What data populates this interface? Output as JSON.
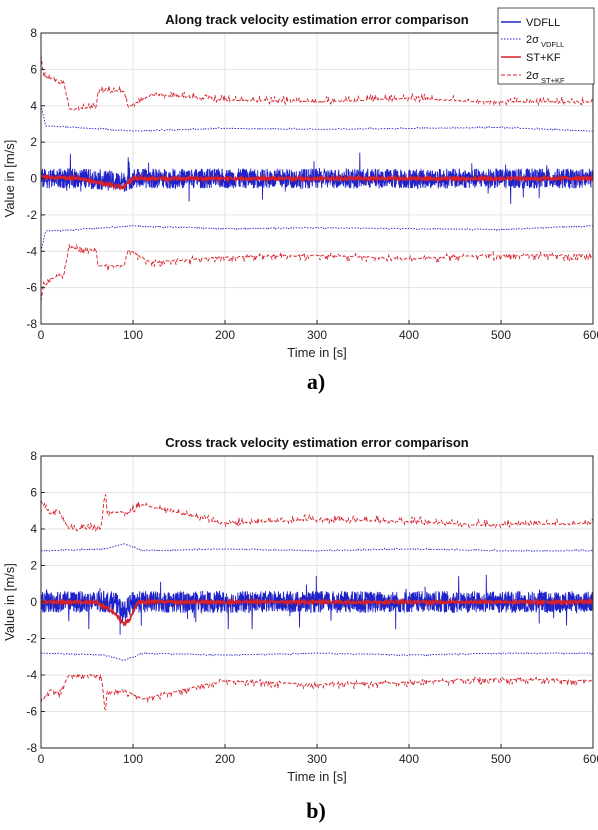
{
  "chart_data": [
    {
      "type": "line",
      "panel_label": "a)",
      "title": "Along track velocity estimation error comparison",
      "xlabel": "Time in [s]",
      "ylabel": "Value in [m/s]",
      "xlim": [
        0,
        600
      ],
      "ylim": [
        -8,
        8
      ],
      "xticks": [
        0,
        100,
        200,
        300,
        400,
        500,
        600
      ],
      "yticks": [
        -8,
        -6,
        -4,
        -2,
        0,
        2,
        4,
        6,
        8
      ],
      "grid": true,
      "legend_position": "top-right",
      "legend": [
        {
          "label": "VDFLL",
          "sub": "",
          "color": "#1f22c8",
          "dash": "solid"
        },
        {
          "label": "2σ",
          "sub": "VDFLL",
          "color": "#1f22c8",
          "dash": "dotted"
        },
        {
          "label": "ST+KF",
          "sub": "",
          "color": "#d6202a",
          "dash": "solid"
        },
        {
          "label": "2σ",
          "sub": "ST+KF",
          "color": "#d6202a",
          "dash": "dashed"
        }
      ],
      "series": [
        {
          "name": "VDFLL",
          "color": "#1f22c8",
          "dash": "solid",
          "noise": 0.55,
          "x": [
            0,
            50,
            90,
            100,
            180,
            250,
            350,
            420,
            520,
            600
          ],
          "y": [
            0.0,
            0.0,
            -0.2,
            0.0,
            0.0,
            0.0,
            0.0,
            0.0,
            0.0,
            0.0
          ]
        },
        {
          "name": "2σ VDFLL upper",
          "color": "#1f22c8",
          "dash": "dotted",
          "noise": 0.06,
          "x": [
            0,
            5,
            100,
            200,
            300,
            400,
            500,
            600
          ],
          "y": [
            4.0,
            2.9,
            2.6,
            2.75,
            2.7,
            2.75,
            2.8,
            2.6
          ]
        },
        {
          "name": "2σ VDFLL lower",
          "color": "#1f22c8",
          "dash": "dotted",
          "noise": 0.06,
          "x": [
            0,
            5,
            100,
            200,
            300,
            400,
            500,
            600
          ],
          "y": [
            -4.0,
            -2.9,
            -2.6,
            -2.75,
            -2.7,
            -2.75,
            -2.8,
            -2.6
          ]
        },
        {
          "name": "ST+KF",
          "color": "#d6202a",
          "dash": "solid",
          "noise": 0.08,
          "x": [
            0,
            40,
            70,
            90,
            100,
            180,
            350,
            600
          ],
          "y": [
            0.1,
            0.0,
            -0.3,
            -0.5,
            0.0,
            0.0,
            0.0,
            0.0
          ]
        },
        {
          "name": "2σ ST+KF upper",
          "color": "#d6202a",
          "dash": "dashed",
          "noise": 0.3,
          "x": [
            0,
            3,
            10,
            25,
            30,
            60,
            62,
            90,
            95,
            120,
            200,
            300,
            400,
            480,
            600
          ],
          "y": [
            6.8,
            5.6,
            5.5,
            5.3,
            3.8,
            3.9,
            4.8,
            4.8,
            3.9,
            4.6,
            4.3,
            4.2,
            4.4,
            4.2,
            4.2
          ]
        },
        {
          "name": "2σ ST+KF lower",
          "color": "#d6202a",
          "dash": "dashed",
          "noise": 0.3,
          "x": [
            0,
            3,
            10,
            25,
            30,
            60,
            62,
            90,
            95,
            120,
            200,
            300,
            400,
            480,
            600
          ],
          "y": [
            -6.8,
            -5.6,
            -5.5,
            -5.3,
            -3.8,
            -3.9,
            -4.8,
            -4.8,
            -3.9,
            -4.6,
            -4.3,
            -4.2,
            -4.4,
            -4.2,
            -4.2
          ]
        }
      ]
    },
    {
      "type": "line",
      "panel_label": "b)",
      "title": "Cross track velocity estimation error comparison",
      "xlabel": "Time in [s]",
      "ylabel": "Value in [m/s]",
      "xlim": [
        0,
        600
      ],
      "ylim": [
        -8,
        8
      ],
      "xticks": [
        0,
        100,
        200,
        300,
        400,
        500,
        600
      ],
      "yticks": [
        -8,
        -6,
        -4,
        -2,
        0,
        2,
        4,
        6,
        8
      ],
      "grid": true,
      "series": [
        {
          "name": "VDFLL",
          "color": "#1f22c8",
          "dash": "solid",
          "noise": 0.6,
          "x": [
            0,
            80,
            90,
            100,
            180,
            250,
            350,
            420,
            520,
            600
          ],
          "y": [
            0.0,
            0.0,
            -0.6,
            0.0,
            0.0,
            0.0,
            0.0,
            0.0,
            0.0,
            0.0
          ]
        },
        {
          "name": "2σ VDFLL upper",
          "color": "#1f22c8",
          "dash": "dotted",
          "noise": 0.06,
          "x": [
            0,
            70,
            90,
            110,
            200,
            300,
            400,
            500,
            600
          ],
          "y": [
            2.8,
            2.9,
            3.2,
            2.8,
            2.9,
            2.8,
            2.9,
            2.8,
            2.8
          ]
        },
        {
          "name": "2σ VDFLL lower",
          "color": "#1f22c8",
          "dash": "dotted",
          "noise": 0.06,
          "x": [
            0,
            70,
            90,
            110,
            200,
            300,
            400,
            500,
            600
          ],
          "y": [
            -2.8,
            -2.9,
            -3.2,
            -2.8,
            -2.9,
            -2.8,
            -2.9,
            -2.8,
            -2.8
          ]
        },
        {
          "name": "ST+KF",
          "color": "#d6202a",
          "dash": "solid",
          "noise": 0.07,
          "x": [
            0,
            60,
            80,
            90,
            96,
            105,
            200,
            600
          ],
          "y": [
            0.0,
            0.0,
            -0.6,
            -1.2,
            -1.0,
            0.0,
            0.0,
            0.0
          ]
        },
        {
          "name": "2σ ST+KF upper",
          "color": "#d6202a",
          "dash": "dashed",
          "noise": 0.3,
          "x": [
            0,
            10,
            20,
            30,
            65,
            70,
            72,
            95,
            110,
            200,
            300,
            400,
            480,
            600
          ],
          "y": [
            5.5,
            4.8,
            5.0,
            4.0,
            4.0,
            6.0,
            4.9,
            4.9,
            5.3,
            4.3,
            4.5,
            4.4,
            4.2,
            4.3
          ]
        },
        {
          "name": "2σ ST+KF lower",
          "color": "#d6202a",
          "dash": "dashed",
          "noise": 0.3,
          "x": [
            0,
            10,
            20,
            30,
            65,
            70,
            72,
            95,
            110,
            200,
            300,
            400,
            480,
            600
          ],
          "y": [
            -5.5,
            -4.8,
            -5.0,
            -4.0,
            -4.0,
            -6.0,
            -4.9,
            -4.9,
            -5.3,
            -4.3,
            -4.5,
            -4.4,
            -4.2,
            -4.3
          ]
        }
      ]
    }
  ]
}
